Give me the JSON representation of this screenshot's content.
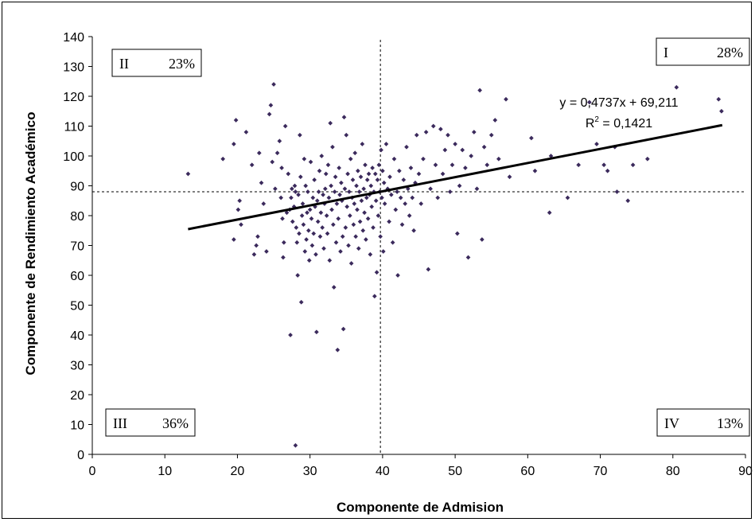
{
  "chart_data": {
    "type": "scatter",
    "xlabel": "Componente de Admision",
    "ylabel": "Componente de Rendimiento Académico",
    "xlim": [
      0,
      90
    ],
    "ylim": [
      0,
      140
    ],
    "xticks": [
      0,
      10,
      20,
      30,
      40,
      50,
      60,
      70,
      80,
      90
    ],
    "yticks": [
      0,
      10,
      20,
      30,
      40,
      50,
      60,
      70,
      80,
      90,
      100,
      110,
      120,
      130,
      140
    ],
    "grid": false,
    "marker_color": "#3b2a5c",
    "trendline": {
      "slope": 0.4737,
      "intercept": 69.211,
      "x_range": [
        13.2,
        86.8
      ],
      "equation": "y = 0,4737x + 69,211",
      "r2_prefix": "R",
      "r2_sup": "2",
      "r2_value": " = 0,1421"
    },
    "reference_lines": {
      "x": 39.7,
      "y": 88
    },
    "quadrants": [
      {
        "name": "II",
        "percent": "23%"
      },
      {
        "name": "I",
        "percent": "28%"
      },
      {
        "name": "III",
        "percent": "36%"
      },
      {
        "name": "IV",
        "percent": "13%"
      }
    ],
    "points": [
      [
        13.2,
        94
      ],
      [
        18.0,
        99
      ],
      [
        19.5,
        104
      ],
      [
        19.8,
        112
      ],
      [
        20.1,
        82
      ],
      [
        20.3,
        85
      ],
      [
        19.5,
        72
      ],
      [
        20.5,
        77
      ],
      [
        21.2,
        108
      ],
      [
        22.0,
        97
      ],
      [
        22.3,
        67
      ],
      [
        22.6,
        70
      ],
      [
        22.8,
        73
      ],
      [
        23.0,
        101
      ],
      [
        23.3,
        91
      ],
      [
        23.6,
        84
      ],
      [
        24.0,
        68
      ],
      [
        24.4,
        114
      ],
      [
        24.6,
        117
      ],
      [
        24.8,
        98
      ],
      [
        25.0,
        124
      ],
      [
        25.2,
        89
      ],
      [
        25.5,
        101
      ],
      [
        25.8,
        105
      ],
      [
        26.0,
        86
      ],
      [
        26.1,
        96
      ],
      [
        26.2,
        79
      ],
      [
        26.3,
        66
      ],
      [
        26.4,
        71
      ],
      [
        26.6,
        110
      ],
      [
        26.8,
        81
      ],
      [
        27.0,
        94
      ],
      [
        27.2,
        82
      ],
      [
        27.4,
        86
      ],
      [
        27.5,
        89
      ],
      [
        27.6,
        78
      ],
      [
        27.8,
        83
      ],
      [
        27.9,
        90
      ],
      [
        28.0,
        88
      ],
      [
        28.1,
        76
      ],
      [
        28.2,
        71
      ],
      [
        28.3,
        60
      ],
      [
        28.4,
        87
      ],
      [
        28.5,
        74
      ],
      [
        28.6,
        107
      ],
      [
        28.7,
        93
      ],
      [
        28.8,
        51
      ],
      [
        28.9,
        80
      ],
      [
        29.0,
        84
      ],
      [
        29.1,
        77
      ],
      [
        29.2,
        99
      ],
      [
        29.3,
        68
      ],
      [
        29.4,
        90
      ],
      [
        29.5,
        72
      ],
      [
        29.6,
        81
      ],
      [
        29.7,
        88
      ],
      [
        29.8,
        75
      ],
      [
        29.9,
        65
      ],
      [
        30.0,
        82
      ],
      [
        30.1,
        98
      ],
      [
        30.2,
        79
      ],
      [
        30.3,
        70
      ],
      [
        30.4,
        86
      ],
      [
        30.5,
        74
      ],
      [
        30.6,
        92
      ],
      [
        30.7,
        83
      ],
      [
        30.8,
        67
      ],
      [
        30.9,
        41
      ],
      [
        31.0,
        85
      ],
      [
        31.1,
        78
      ],
      [
        31.2,
        88
      ],
      [
        31.3,
        95
      ],
      [
        31.4,
        73
      ],
      [
        31.5,
        81
      ],
      [
        31.6,
        100
      ],
      [
        31.7,
        76
      ],
      [
        31.8,
        87
      ],
      [
        31.9,
        69
      ],
      [
        32.0,
        84
      ],
      [
        32.1,
        89
      ],
      [
        32.2,
        94
      ],
      [
        32.3,
        80
      ],
      [
        32.4,
        74
      ],
      [
        32.5,
        97
      ],
      [
        32.6,
        86
      ],
      [
        32.7,
        65
      ],
      [
        32.8,
        111
      ],
      [
        32.9,
        90
      ],
      [
        33.0,
        82
      ],
      [
        33.1,
        103
      ],
      [
        33.2,
        77
      ],
      [
        33.3,
        56
      ],
      [
        33.4,
        88
      ],
      [
        33.5,
        93
      ],
      [
        33.6,
        71
      ],
      [
        33.7,
        84
      ],
      [
        33.8,
        35
      ],
      [
        33.9,
        79
      ],
      [
        34.0,
        96
      ],
      [
        34.1,
        87
      ],
      [
        34.2,
        68
      ],
      [
        34.3,
        91
      ],
      [
        34.4,
        85
      ],
      [
        34.5,
        73
      ],
      [
        34.6,
        42
      ],
      [
        34.7,
        113
      ],
      [
        34.8,
        89
      ],
      [
        34.9,
        76
      ],
      [
        35.0,
        107
      ],
      [
        35.1,
        83
      ],
      [
        35.2,
        94
      ],
      [
        35.3,
        70
      ],
      [
        35.4,
        88
      ],
      [
        35.5,
        80
      ],
      [
        35.6,
        99
      ],
      [
        35.7,
        64
      ],
      [
        35.8,
        86
      ],
      [
        35.9,
        92
      ],
      [
        36.0,
        77
      ],
      [
        36.1,
        84
      ],
      [
        36.2,
        101
      ],
      [
        36.3,
        73
      ],
      [
        36.4,
        90
      ],
      [
        36.5,
        82
      ],
      [
        36.6,
        95
      ],
      [
        36.7,
        69
      ],
      [
        36.8,
        88
      ],
      [
        36.9,
        78
      ],
      [
        37.0,
        93
      ],
      [
        37.1,
        85
      ],
      [
        37.2,
        104
      ],
      [
        37.3,
        75
      ],
      [
        37.4,
        89
      ],
      [
        37.5,
        81
      ],
      [
        37.6,
        97
      ],
      [
        37.7,
        72
      ],
      [
        37.8,
        86
      ],
      [
        37.9,
        92
      ],
      [
        38.0,
        79
      ],
      [
        38.1,
        94
      ],
      [
        38.2,
        87
      ],
      [
        38.3,
        67
      ],
      [
        38.4,
        90
      ],
      [
        38.5,
        83
      ],
      [
        38.6,
        96
      ],
      [
        38.7,
        76
      ],
      [
        38.8,
        88
      ],
      [
        38.9,
        53
      ],
      [
        39.0,
        94
      ],
      [
        39.1,
        85
      ],
      [
        39.2,
        61
      ],
      [
        39.3,
        92
      ],
      [
        39.4,
        80
      ],
      [
        39.5,
        97
      ],
      [
        39.6,
        88
      ],
      [
        39.7,
        73
      ],
      [
        39.8,
        102
      ],
      [
        39.9,
        86
      ],
      [
        40.0,
        95
      ],
      [
        40.1,
        68
      ],
      [
        40.2,
        91
      ],
      [
        40.3,
        84
      ],
      [
        40.5,
        104
      ],
      [
        40.7,
        89
      ],
      [
        40.9,
        78
      ],
      [
        41.0,
        93
      ],
      [
        41.2,
        87
      ],
      [
        41.4,
        71
      ],
      [
        41.6,
        99
      ],
      [
        41.8,
        82
      ],
      [
        42.0,
        88
      ],
      [
        42.1,
        60
      ],
      [
        42.3,
        95
      ],
      [
        42.5,
        86
      ],
      [
        42.7,
        77
      ],
      [
        42.9,
        92
      ],
      [
        43.1,
        84
      ],
      [
        43.3,
        103
      ],
      [
        43.5,
        89
      ],
      [
        43.7,
        80
      ],
      [
        43.9,
        96
      ],
      [
        44.1,
        86
      ],
      [
        44.3,
        75
      ],
      [
        44.5,
        91
      ],
      [
        44.7,
        107
      ],
      [
        45.0,
        94
      ],
      [
        45.3,
        84
      ],
      [
        45.6,
        99
      ],
      [
        46.0,
        108
      ],
      [
        46.3,
        62
      ],
      [
        46.6,
        89
      ],
      [
        47.0,
        110
      ],
      [
        47.3,
        97
      ],
      [
        47.6,
        86
      ],
      [
        48.0,
        109
      ],
      [
        48.3,
        94
      ],
      [
        48.6,
        102
      ],
      [
        49.0,
        107
      ],
      [
        49.3,
        88
      ],
      [
        49.6,
        97
      ],
      [
        50.0,
        104
      ],
      [
        50.3,
        74
      ],
      [
        50.6,
        90
      ],
      [
        51.0,
        102
      ],
      [
        51.4,
        96
      ],
      [
        51.8,
        66
      ],
      [
        52.2,
        100
      ],
      [
        52.6,
        108
      ],
      [
        53.0,
        89
      ],
      [
        53.4,
        122
      ],
      [
        53.7,
        72
      ],
      [
        54.0,
        103
      ],
      [
        54.4,
        97
      ],
      [
        55.0,
        107
      ],
      [
        55.5,
        112
      ],
      [
        56.0,
        99
      ],
      [
        57.0,
        119
      ],
      [
        57.5,
        93
      ],
      [
        60.5,
        106
      ],
      [
        61.0,
        95
      ],
      [
        63.0,
        81
      ],
      [
        63.2,
        100
      ],
      [
        65.5,
        86
      ],
      [
        67.0,
        97
      ],
      [
        68.5,
        118
      ],
      [
        69.5,
        104
      ],
      [
        70.5,
        97
      ],
      [
        71.0,
        95
      ],
      [
        72.0,
        103
      ],
      [
        72.3,
        88
      ],
      [
        73.8,
        85
      ],
      [
        74.5,
        97
      ],
      [
        76.5,
        99
      ],
      [
        80.5,
        123
      ],
      [
        86.3,
        119
      ],
      [
        86.7,
        115
      ],
      [
        28.0,
        3
      ],
      [
        27.3,
        40
      ]
    ]
  }
}
